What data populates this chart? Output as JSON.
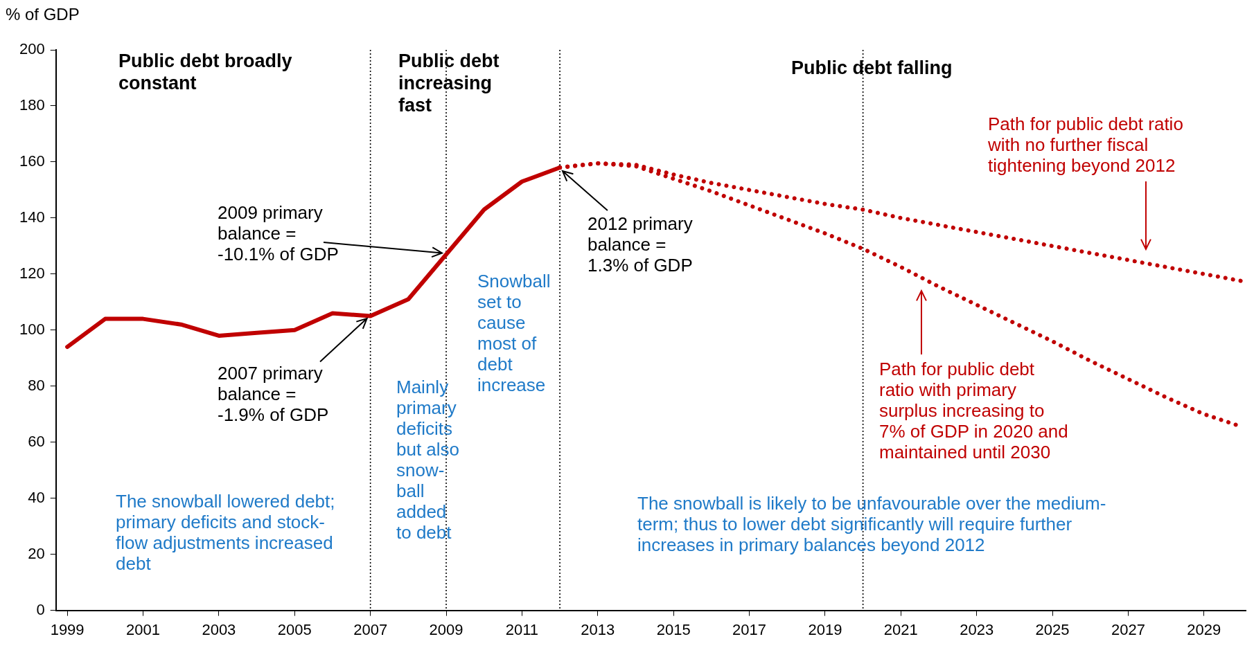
{
  "chart_data": {
    "type": "line",
    "ylabel": "% of GDP",
    "xlim": [
      1998.7,
      2030.1
    ],
    "xticks": [
      1999,
      2001,
      2003,
      2005,
      2007,
      2009,
      2011,
      2013,
      2015,
      2017,
      2019,
      2021,
      2023,
      2025,
      2027,
      2029
    ],
    "ylim": [
      0,
      200
    ],
    "yticks": [
      0,
      20,
      40,
      60,
      80,
      100,
      120,
      140,
      160,
      180,
      200
    ],
    "marker": "none",
    "series": [
      {
        "color": "#c00000",
        "line_style": "solid",
        "x": [
          1999,
          2000,
          2001,
          2002,
          2003,
          2004,
          2005,
          2006,
          2007,
          2008,
          2009,
          2010,
          2011,
          2012
        ],
        "values": [
          94,
          104,
          104,
          102,
          98,
          99,
          100,
          106,
          105,
          111,
          127,
          143,
          153,
          158
        ]
      },
      {
        "color": "#c00000",
        "line_style": "dotted",
        "x": [
          2012,
          2013,
          2014,
          2015,
          2016,
          2017,
          2018,
          2019,
          2020,
          2021,
          2022,
          2023,
          2024,
          2025,
          2026,
          2027,
          2028,
          2029,
          2030
        ],
        "values": [
          158,
          159.5,
          159,
          155.5,
          152.5,
          150,
          147.5,
          145,
          143,
          140,
          137.5,
          135,
          132.5,
          130,
          127.5,
          125,
          122.5,
          120,
          117.5
        ]
      },
      {
        "color": "#c00000",
        "line_style": "dotted",
        "x": [
          2012,
          2013,
          2014,
          2015,
          2016,
          2017,
          2018,
          2019,
          2020,
          2021,
          2022,
          2023,
          2024,
          2025,
          2026,
          2027,
          2028,
          2029,
          2030
        ],
        "values": [
          158,
          159.5,
          158.5,
          154,
          149.5,
          144.5,
          139.5,
          134.5,
          129,
          122.5,
          115.5,
          109,
          102.5,
          96,
          89,
          82.5,
          76,
          70,
          65.5
        ]
      }
    ],
    "ref_lines": [
      {
        "axis": "x",
        "value": 2007,
        "color": "#000000",
        "line_style": "dotted"
      },
      {
        "axis": "x",
        "value": 2009,
        "color": "#000000",
        "line_style": "dotted"
      },
      {
        "axis": "x",
        "value": 2012,
        "color": "#000000",
        "line_style": "dotted"
      },
      {
        "axis": "x",
        "value": 2020,
        "color": "#000000",
        "line_style": "dotted"
      }
    ],
    "annotations": [
      "Public debt broadly constant",
      "Public debt increasing fast",
      "Public debt falling",
      {
        "text": "2007 primary balance = -1.9% of GDP",
        "x": 2007,
        "y": 105
      },
      {
        "text": "2009 primary balance = -10.1% of GDP",
        "x": 2009,
        "y": 127
      },
      {
        "text": "2012 primary balance = 1.3% of GDP",
        "x": 2012,
        "y": 158
      },
      "The snowball lowered debt; primary deficits and stock-flow adjustments increased debt",
      "Mainly primary deficits but also snow-ball added to debt",
      "Snowball set to cause most of debt increase",
      "The snowball is likely to be unfavourable over the medium-term; thus to lower debt significantly will require further increases in primary balances beyond 2012",
      "Path for public debt ratio with no further fiscal tightening beyond 2012",
      "Path for public debt ratio with primary surplus increasing to 7% of GDP in 2020 and maintained until 2030"
    ]
  }
}
